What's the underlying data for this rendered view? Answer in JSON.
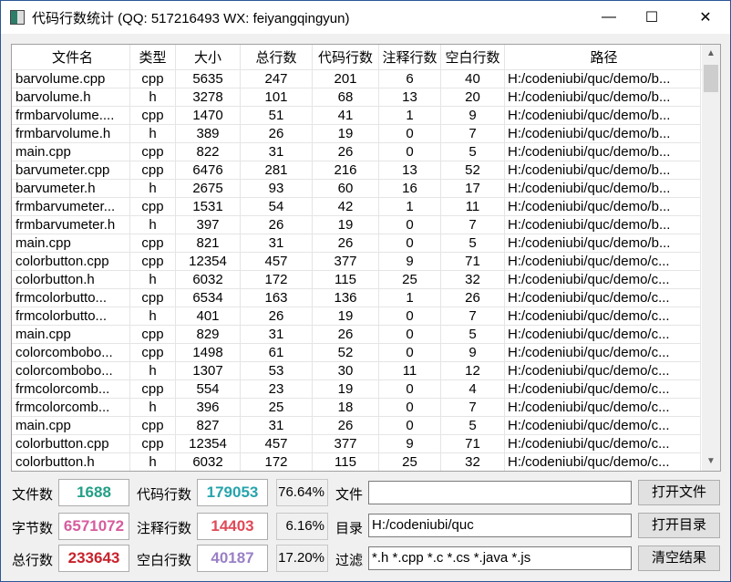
{
  "window": {
    "title": "代码行数统计 (QQ: 517216493 WX: feiyangqingyun)",
    "minimize": "—",
    "maximize": "☐",
    "close": "✕"
  },
  "table": {
    "headers": [
      "文件名",
      "类型",
      "大小",
      "总行数",
      "代码行数",
      "注释行数",
      "空白行数",
      "路径"
    ],
    "rows": [
      [
        "barvolume.cpp",
        "cpp",
        "5635",
        "247",
        "201",
        "6",
        "40",
        "H:/codeniubi/quc/demo/b..."
      ],
      [
        "barvolume.h",
        "h",
        "3278",
        "101",
        "68",
        "13",
        "20",
        "H:/codeniubi/quc/demo/b..."
      ],
      [
        "frmbarvolume....",
        "cpp",
        "1470",
        "51",
        "41",
        "1",
        "9",
        "H:/codeniubi/quc/demo/b..."
      ],
      [
        "frmbarvolume.h",
        "h",
        "389",
        "26",
        "19",
        "0",
        "7",
        "H:/codeniubi/quc/demo/b..."
      ],
      [
        "main.cpp",
        "cpp",
        "822",
        "31",
        "26",
        "0",
        "5",
        "H:/codeniubi/quc/demo/b..."
      ],
      [
        "barvumeter.cpp",
        "cpp",
        "6476",
        "281",
        "216",
        "13",
        "52",
        "H:/codeniubi/quc/demo/b..."
      ],
      [
        "barvumeter.h",
        "h",
        "2675",
        "93",
        "60",
        "16",
        "17",
        "H:/codeniubi/quc/demo/b..."
      ],
      [
        "frmbarvumeter...",
        "cpp",
        "1531",
        "54",
        "42",
        "1",
        "11",
        "H:/codeniubi/quc/demo/b..."
      ],
      [
        "frmbarvumeter.h",
        "h",
        "397",
        "26",
        "19",
        "0",
        "7",
        "H:/codeniubi/quc/demo/b..."
      ],
      [
        "main.cpp",
        "cpp",
        "821",
        "31",
        "26",
        "0",
        "5",
        "H:/codeniubi/quc/demo/b..."
      ],
      [
        "colorbutton.cpp",
        "cpp",
        "12354",
        "457",
        "377",
        "9",
        "71",
        "H:/codeniubi/quc/demo/c..."
      ],
      [
        "colorbutton.h",
        "h",
        "6032",
        "172",
        "115",
        "25",
        "32",
        "H:/codeniubi/quc/demo/c..."
      ],
      [
        "frmcolorbutto...",
        "cpp",
        "6534",
        "163",
        "136",
        "1",
        "26",
        "H:/codeniubi/quc/demo/c..."
      ],
      [
        "frmcolorbutto...",
        "h",
        "401",
        "26",
        "19",
        "0",
        "7",
        "H:/codeniubi/quc/demo/c..."
      ],
      [
        "main.cpp",
        "cpp",
        "829",
        "31",
        "26",
        "0",
        "5",
        "H:/codeniubi/quc/demo/c..."
      ],
      [
        "colorcombobo...",
        "cpp",
        "1498",
        "61",
        "52",
        "0",
        "9",
        "H:/codeniubi/quc/demo/c..."
      ],
      [
        "colorcombobo...",
        "h",
        "1307",
        "53",
        "30",
        "11",
        "12",
        "H:/codeniubi/quc/demo/c..."
      ],
      [
        "frmcolorcomb...",
        "cpp",
        "554",
        "23",
        "19",
        "0",
        "4",
        "H:/codeniubi/quc/demo/c..."
      ],
      [
        "frmcolorcomb...",
        "h",
        "396",
        "25",
        "18",
        "0",
        "7",
        "H:/codeniubi/quc/demo/c..."
      ],
      [
        "main.cpp",
        "cpp",
        "827",
        "31",
        "26",
        "0",
        "5",
        "H:/codeniubi/quc/demo/c..."
      ],
      [
        "colorbutton.cpp",
        "cpp",
        "12354",
        "457",
        "377",
        "9",
        "71",
        "H:/codeniubi/quc/demo/c..."
      ],
      [
        "colorbutton.h",
        "h",
        "6032",
        "172",
        "115",
        "25",
        "32",
        "H:/codeniubi/quc/demo/c..."
      ]
    ]
  },
  "stats": {
    "file_count": {
      "label": "文件数",
      "value": "1688",
      "color": "#23a086"
    },
    "byte_count": {
      "label": "字节数",
      "value": "6571072",
      "color": "#d65c9e"
    },
    "total_lines": {
      "label": "总行数",
      "value": "233643",
      "color": "#c8222b"
    },
    "code_lines": {
      "label": "代码行数",
      "value": "179053",
      "color": "#27a4ad",
      "percent": "76.64%"
    },
    "comment_lines": {
      "label": "注释行数",
      "value": "14403",
      "color": "#e04a58",
      "percent": "6.16%"
    },
    "blank_lines": {
      "label": "空白行数",
      "value": "40187",
      "color": "#9a80c6",
      "percent": "17.20%"
    }
  },
  "form": {
    "file": {
      "label": "文件",
      "value": ""
    },
    "dir": {
      "label": "目录",
      "value": "H:/codeniubi/quc"
    },
    "filter": {
      "label": "过滤",
      "value": "*.h *.cpp *.c *.cs *.java *.js"
    },
    "open_file": "打开文件",
    "open_dir": "打开目录",
    "clear": "清空结果"
  }
}
